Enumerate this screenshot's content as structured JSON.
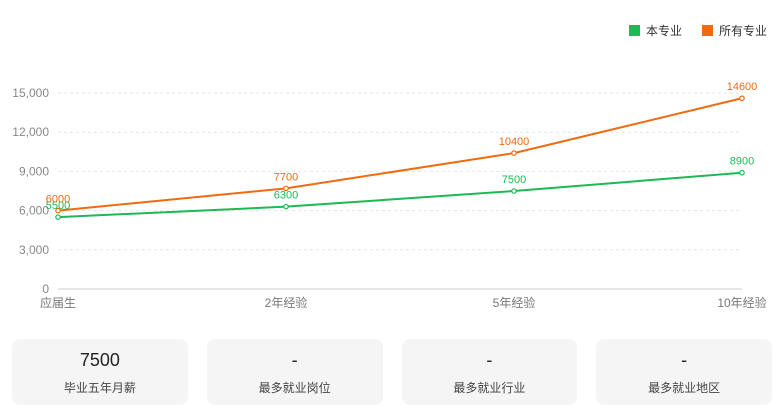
{
  "legend": {
    "items": [
      {
        "label": "本专业",
        "color": "#1db954"
      },
      {
        "label": "所有专业",
        "color": "#f06a0f"
      }
    ]
  },
  "chart_data": {
    "type": "line",
    "categories": [
      "应届生",
      "2年经验",
      "5年经验",
      "10年经验"
    ],
    "series": [
      {
        "name": "本专业",
        "values": [
          5500,
          6300,
          7500,
          8900
        ],
        "color": "#1db954"
      },
      {
        "name": "所有专业",
        "values": [
          6000,
          7700,
          10400,
          14600
        ],
        "color": "#f06a0f"
      }
    ],
    "yticks": [
      "0",
      "3,000",
      "6,000",
      "9,000",
      "12,000",
      "15,000"
    ],
    "ylim": [
      0,
      15000
    ],
    "grid": true,
    "legend_position": "top-right"
  },
  "cards": [
    {
      "value": "7500",
      "label": "毕业五年月薪"
    },
    {
      "value": "-",
      "label": "最多就业岗位"
    },
    {
      "value": "-",
      "label": "最多就业行业"
    },
    {
      "value": "-",
      "label": "最多就业地区"
    }
  ]
}
